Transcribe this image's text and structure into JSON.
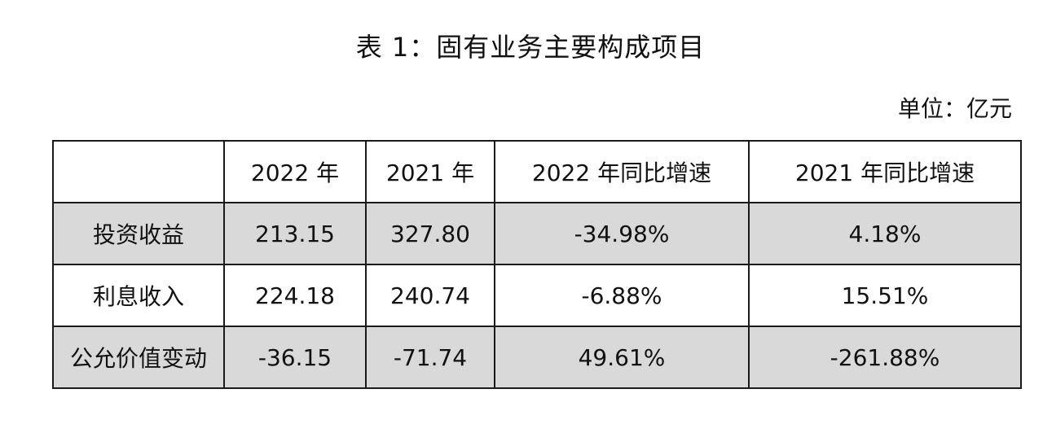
{
  "title": "表 1：固有业务主要构成项目",
  "unit": "单位：亿元",
  "table": {
    "headers": [
      "",
      "2022 年",
      "2021 年",
      "2022 年同比增速",
      "2021 年同比增速"
    ],
    "rows": [
      [
        "投资收益",
        "213.15",
        "327.80",
        "-34.98%",
        "4.18%"
      ],
      [
        "利息收入",
        "224.18",
        "240.74",
        "-6.88%",
        "15.51%"
      ],
      [
        "公允价值变动",
        "-36.15",
        "-71.74",
        "49.61%",
        "-261.88%"
      ]
    ],
    "shaded_row_color": "#d9d9d9"
  }
}
